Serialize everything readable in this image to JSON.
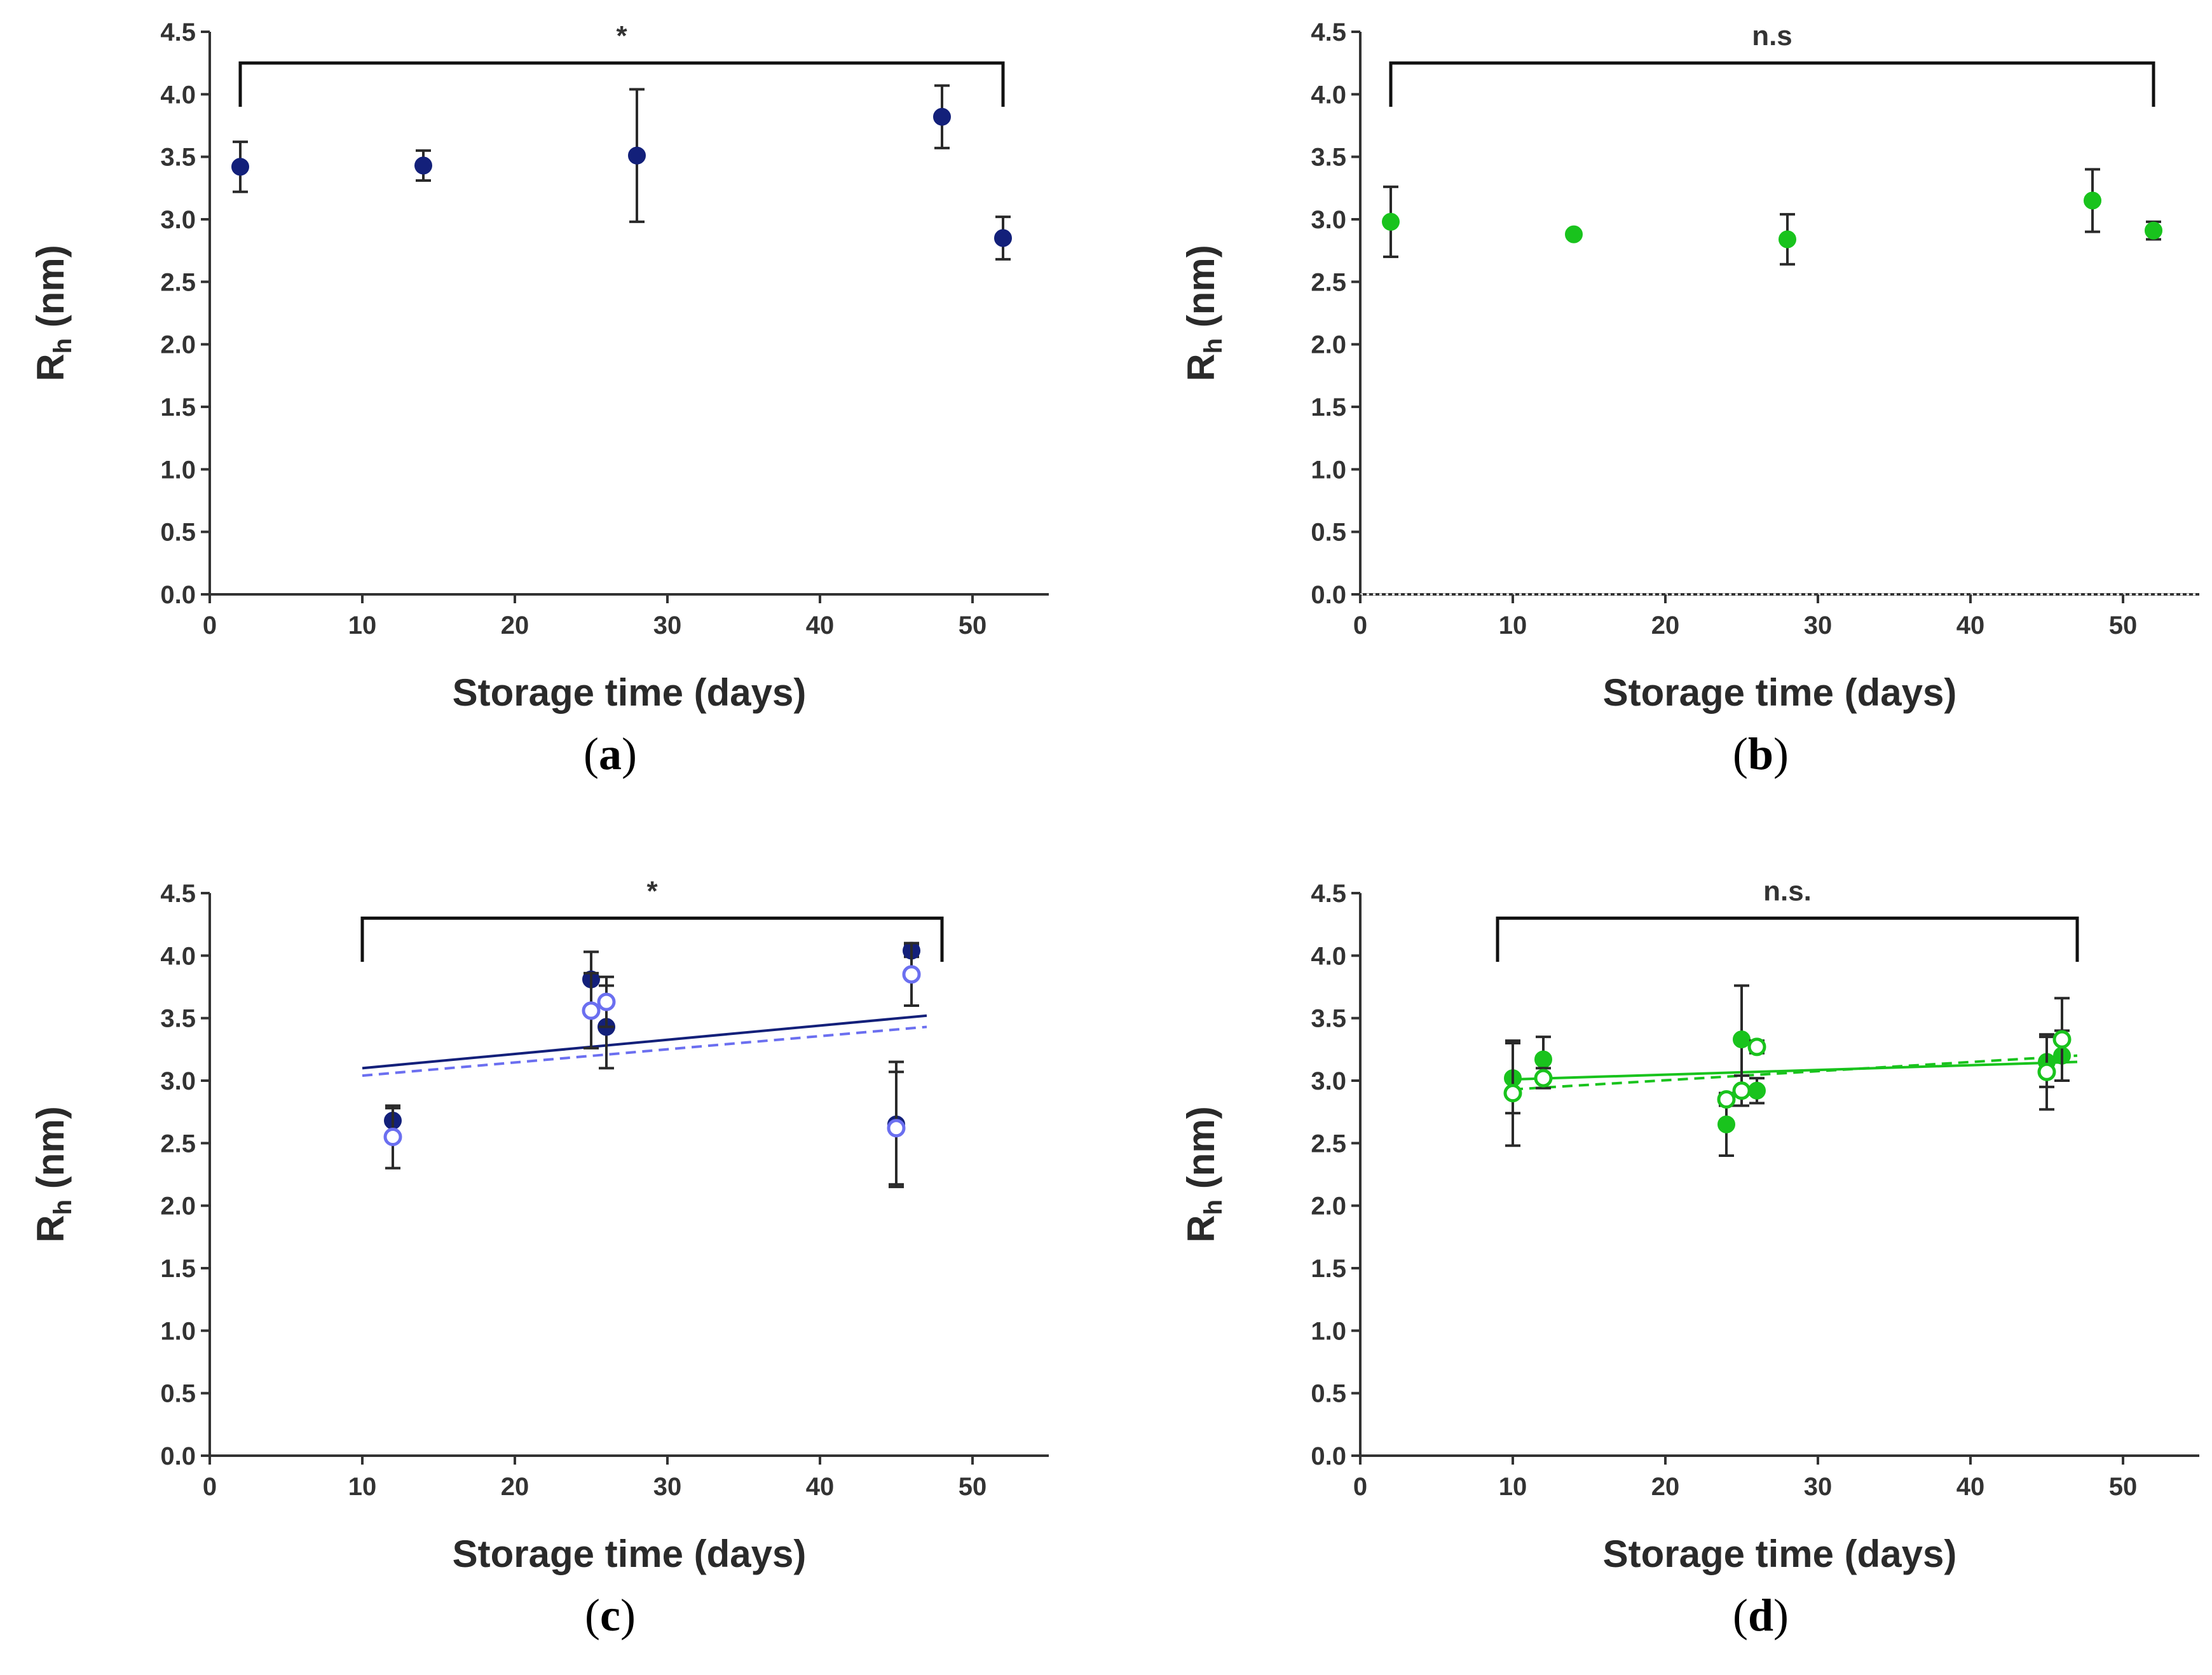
{
  "figure": {
    "panel_count": 4
  },
  "chart_data": [
    {
      "panel": "a",
      "type": "scatter",
      "caption": "(a)",
      "caption_letter": "a",
      "xlabel": "Storage time (days)",
      "ylabel_main": "R",
      "ylabel_sub": "h",
      "ylabel_unit": " (nm)",
      "xlim": [
        0,
        55
      ],
      "ylim": [
        0,
        4.5
      ],
      "xticks": [
        0,
        10,
        20,
        30,
        40,
        50
      ],
      "yticks": [
        0.0,
        0.5,
        1.0,
        1.5,
        2.0,
        2.5,
        3.0,
        3.5,
        4.0,
        4.5
      ],
      "ytick_labels": [
        "0.0",
        "0.5",
        "1.0",
        "1.5",
        "2.0",
        "2.5",
        "3.0",
        "3.5",
        "4.0",
        "4.5"
      ],
      "significance": {
        "label": "*",
        "x_from": 2,
        "x_to": 52,
        "y": 4.25,
        "drop": 0.35
      },
      "baseline_dotted": false,
      "series": [
        {
          "name": "filled-navy",
          "color": "#13207a",
          "filled": true,
          "x": [
            2,
            14,
            28,
            48,
            52
          ],
          "y": [
            3.42,
            3.43,
            3.51,
            3.82,
            2.85
          ],
          "err": [
            0.2,
            0.12,
            0.53,
            0.25,
            0.17
          ]
        }
      ],
      "fits": []
    },
    {
      "panel": "b",
      "type": "scatter",
      "caption": "(b)",
      "caption_letter": "b",
      "xlabel": "Storage time (days)",
      "ylabel_main": "R",
      "ylabel_sub": "h",
      "ylabel_unit": " (nm)",
      "xlim": [
        0,
        55
      ],
      "ylim": [
        0,
        4.5
      ],
      "xticks": [
        0,
        10,
        20,
        30,
        40,
        50
      ],
      "yticks": [
        0.0,
        0.5,
        1.0,
        1.5,
        2.0,
        2.5,
        3.0,
        3.5,
        4.0,
        4.5
      ],
      "ytick_labels": [
        "0.0",
        "0.5",
        "1.0",
        "1.5",
        "2.0",
        "2.5",
        "3.0",
        "3.5",
        "4.0",
        "4.5"
      ],
      "significance": {
        "label": "n.s",
        "x_from": 2,
        "x_to": 52,
        "y": 4.25,
        "drop": 0.35
      },
      "baseline_dotted": true,
      "series": [
        {
          "name": "filled-green",
          "color": "#19c31d",
          "filled": true,
          "x": [
            2,
            14,
            28,
            48,
            52
          ],
          "y": [
            2.98,
            2.88,
            2.84,
            3.15,
            2.91
          ],
          "err": [
            0.28,
            0,
            0.2,
            0.25,
            0.07
          ]
        }
      ],
      "fits": []
    },
    {
      "panel": "c",
      "type": "scatter",
      "caption": "(c)",
      "caption_letter": "c",
      "xlabel": "Storage time (days)",
      "ylabel_main": "R",
      "ylabel_sub": "h",
      "ylabel_unit": " (nm)",
      "xlim": [
        0,
        55
      ],
      "ylim": [
        0,
        4.5
      ],
      "xticks": [
        0,
        10,
        20,
        30,
        40,
        50
      ],
      "yticks": [
        0.0,
        0.5,
        1.0,
        1.5,
        2.0,
        2.5,
        3.0,
        3.5,
        4.0,
        4.5
      ],
      "ytick_labels": [
        "0.0",
        "0.5",
        "1.0",
        "1.5",
        "2.0",
        "2.5",
        "3.0",
        "3.5",
        "4.0",
        "4.5"
      ],
      "significance": {
        "label": "*",
        "x_from": 10,
        "x_to": 48,
        "y": 4.3,
        "drop": 0.35
      },
      "baseline_dotted": false,
      "series": [
        {
          "name": "filled-navy",
          "color": "#13207a",
          "filled": true,
          "x": [
            12,
            25,
            26,
            45,
            46
          ],
          "y": [
            2.68,
            3.81,
            3.43,
            2.65,
            4.04
          ],
          "err": [
            0.1,
            0.22,
            0.33,
            0.5,
            0.05
          ]
        },
        {
          "name": "open-blue",
          "color": "#6b6ff0",
          "filled": false,
          "x": [
            12,
            25,
            26,
            45,
            46
          ],
          "y": [
            2.55,
            3.56,
            3.63,
            2.62,
            3.85
          ],
          "err": [
            0.25,
            0.3,
            0.2,
            0.45,
            0.25
          ]
        }
      ],
      "fits": [
        {
          "name": "fit-filled",
          "color": "#13207a",
          "dashed": false,
          "x": [
            10,
            47
          ],
          "y": [
            3.1,
            3.52
          ]
        },
        {
          "name": "fit-open",
          "color": "#6b6ff0",
          "dashed": true,
          "x": [
            10,
            47
          ],
          "y": [
            3.04,
            3.43
          ]
        }
      ]
    },
    {
      "panel": "d",
      "type": "scatter",
      "caption": "(d)",
      "caption_letter": "d",
      "xlabel": "Storage time (days)",
      "ylabel_main": "R",
      "ylabel_sub": "h",
      "ylabel_unit": " (nm)",
      "xlim": [
        0,
        55
      ],
      "ylim": [
        0,
        4.5
      ],
      "xticks": [
        0,
        10,
        20,
        30,
        40,
        50
      ],
      "yticks": [
        0.0,
        0.5,
        1.0,
        1.5,
        2.0,
        2.5,
        3.0,
        3.5,
        4.0,
        4.5
      ],
      "ytick_labels": [
        "0.0",
        "0.5",
        "1.0",
        "1.5",
        "2.0",
        "2.5",
        "3.0",
        "3.5",
        "4.0",
        "4.5"
      ],
      "significance": {
        "label": "n.s.",
        "x_from": 9,
        "x_to": 47,
        "y": 4.3,
        "drop": 0.35
      },
      "baseline_dotted": false,
      "series": [
        {
          "name": "filled-green",
          "color": "#19c31d",
          "filled": true,
          "x": [
            10,
            12,
            24,
            25,
            26,
            45,
            46
          ],
          "y": [
            3.02,
            3.17,
            2.65,
            3.33,
            2.92,
            3.15,
            3.2
          ],
          "err": [
            0.28,
            0.18,
            0.25,
            0.43,
            0.1,
            0.2,
            0.2
          ]
        },
        {
          "name": "open-green",
          "color": "#19c31d",
          "filled": false,
          "x": [
            10,
            12,
            24,
            25,
            26,
            45,
            46
          ],
          "y": [
            2.9,
            3.02,
            2.85,
            2.92,
            3.27,
            3.07,
            3.33
          ],
          "err": [
            0.42,
            0.08,
            0.05,
            0.12,
            0.05,
            0.3,
            0.33
          ]
        }
      ],
      "fits": [
        {
          "name": "fit-filled",
          "color": "#19c31d",
          "dashed": false,
          "x": [
            10,
            47
          ],
          "y": [
            3.01,
            3.15
          ]
        },
        {
          "name": "fit-open",
          "color": "#19c31d",
          "dashed": true,
          "x": [
            10,
            47
          ],
          "y": [
            2.93,
            3.2
          ]
        }
      ]
    }
  ]
}
